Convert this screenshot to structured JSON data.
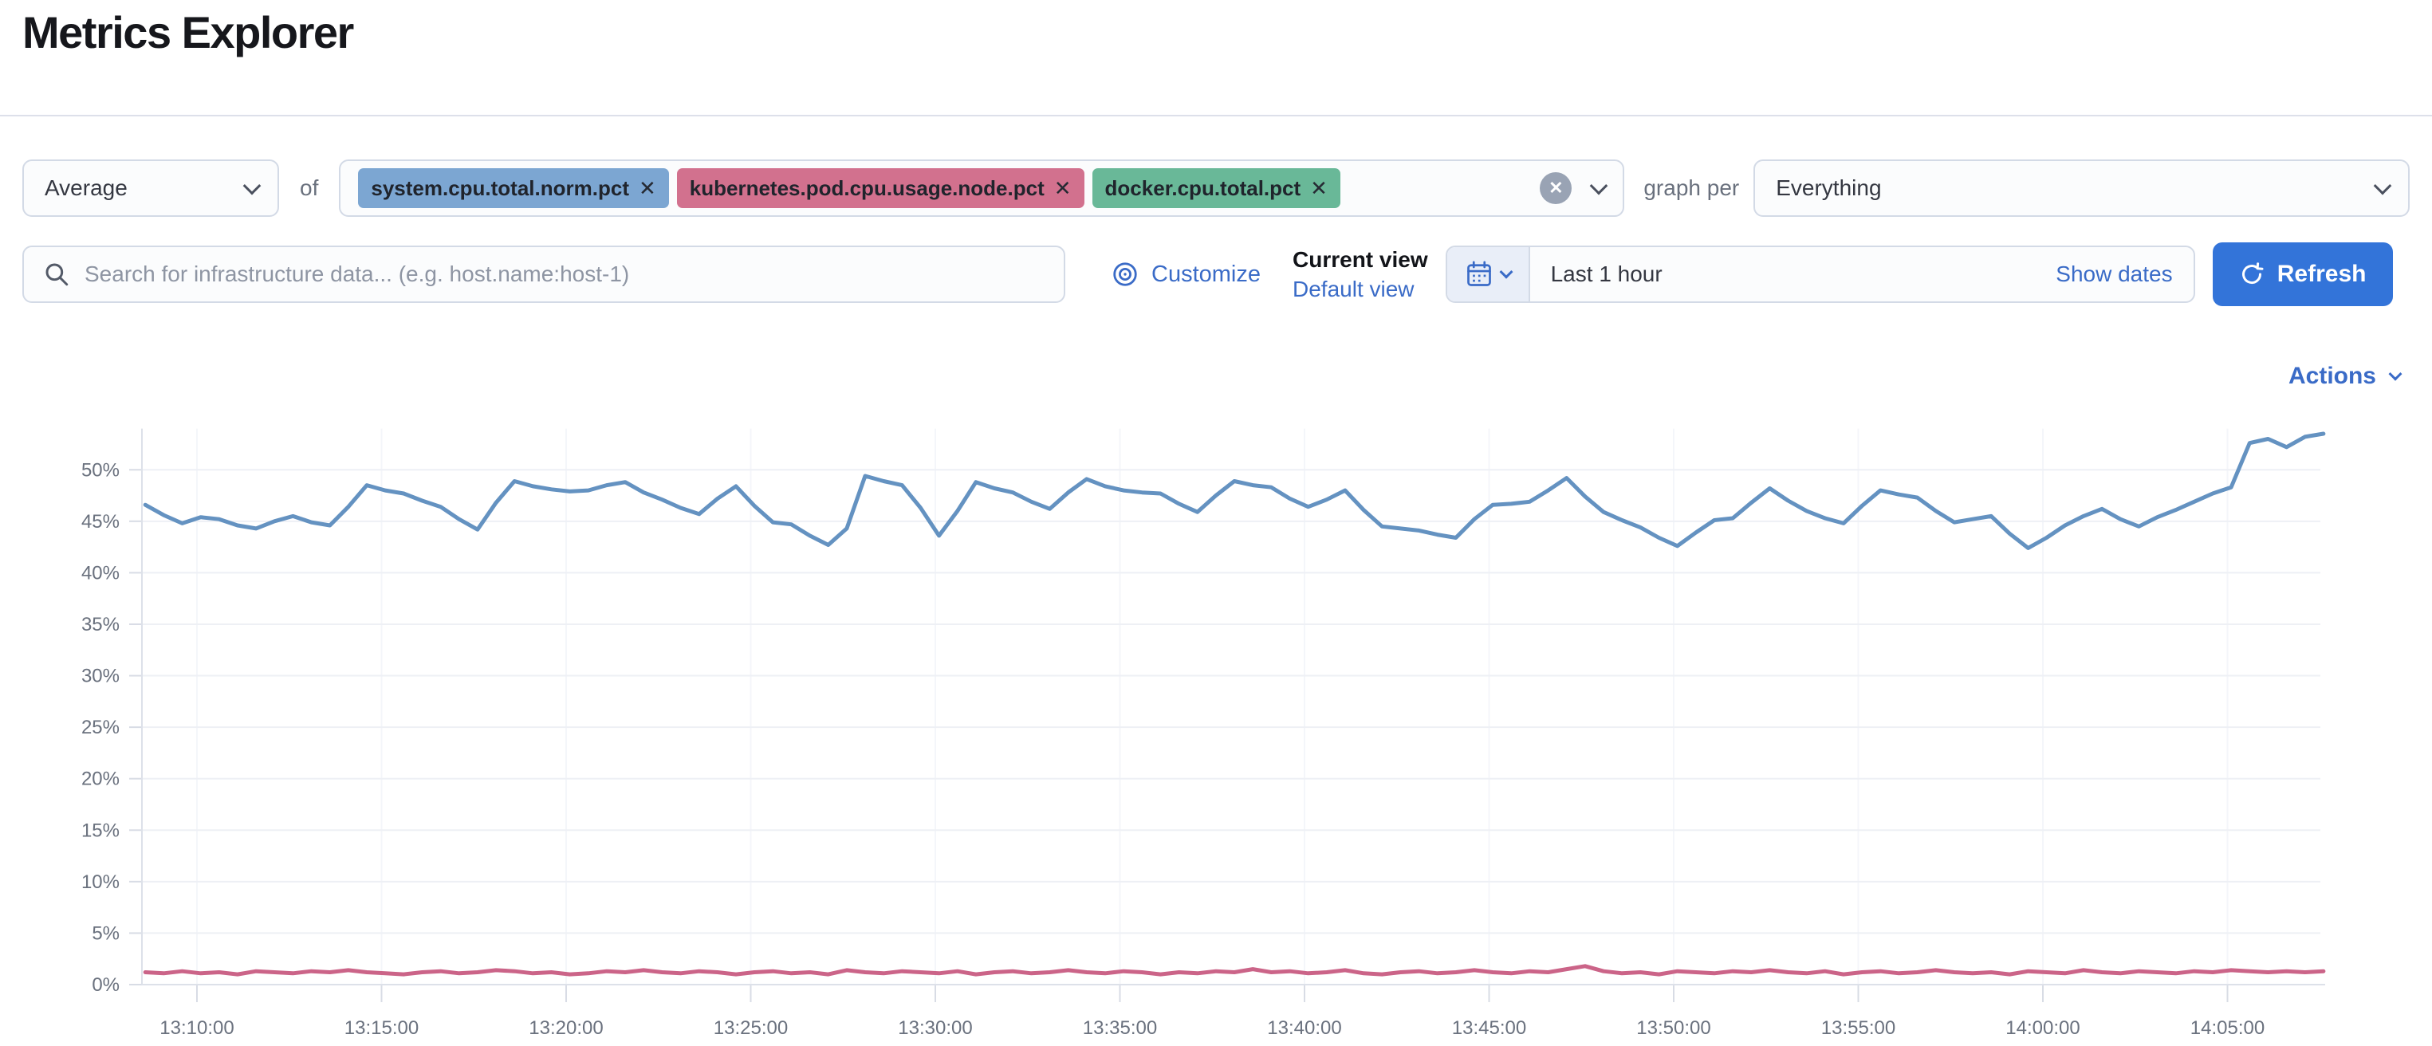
{
  "page": {
    "title": "Metrics Explorer"
  },
  "colors": {
    "accent": "#3a6bc7",
    "refresh_button": "#3374d9"
  },
  "toolbar": {
    "aggregation": {
      "value": "Average"
    },
    "of_label": "of",
    "metrics": [
      {
        "label": "system.cpu.total.norm.pct",
        "color": "#7ca6d2"
      },
      {
        "label": "kubernetes.pod.cpu.usage.node.pct",
        "color": "#d2718e"
      },
      {
        "label": "docker.cpu.total.pct",
        "color": "#69b898"
      }
    ],
    "graph_per_label": "graph per",
    "graph_per": {
      "value": "Everything"
    }
  },
  "search": {
    "placeholder": "Search for infrastructure data... (e.g. host.name:host-1)"
  },
  "view_controls": {
    "customize_label": "Customize",
    "current_view_label": "Current view",
    "view_name": "Default view"
  },
  "time_controls": {
    "range_label": "Last 1 hour",
    "show_dates_label": "Show dates",
    "refresh_label": "Refresh"
  },
  "actions": {
    "label": "Actions"
  },
  "chart_data": {
    "type": "line",
    "title": "",
    "xlabel": "",
    "ylabel": "",
    "y_unit": "%",
    "ylim": [
      0,
      55
    ],
    "grid": true,
    "legend_position": "none",
    "y_ticks": [
      0,
      5,
      10,
      15,
      20,
      25,
      30,
      35,
      40,
      45,
      50
    ],
    "x_ticks": [
      {
        "label": "13:10:00",
        "minute": 2
      },
      {
        "label": "13:15:00",
        "minute": 7
      },
      {
        "label": "13:20:00",
        "minute": 12
      },
      {
        "label": "13:25:00",
        "minute": 17
      },
      {
        "label": "13:30:00",
        "minute": 22
      },
      {
        "label": "13:35:00",
        "minute": 27
      },
      {
        "label": "13:40:00",
        "minute": 32
      },
      {
        "label": "13:45:00",
        "minute": 37
      },
      {
        "label": "13:50:00",
        "minute": 42
      },
      {
        "label": "13:55:00",
        "minute": 47
      },
      {
        "label": "14:00:00",
        "minute": 52
      },
      {
        "label": "14:05:00",
        "minute": 57
      }
    ],
    "x_start_minutes": 0.6,
    "x_step_minutes": 0.5,
    "series": [
      {
        "name": "system.cpu.total.norm.pct",
        "color": "#6492c1",
        "values": [
          46.6,
          45.6,
          44.8,
          45.4,
          45.2,
          44.6,
          44.3,
          45.0,
          45.5,
          44.9,
          44.6,
          46.4,
          48.5,
          48.0,
          47.7,
          47.0,
          46.4,
          45.2,
          44.2,
          46.8,
          48.9,
          48.4,
          48.1,
          47.9,
          48.0,
          48.5,
          48.8,
          47.8,
          47.1,
          46.3,
          45.7,
          47.2,
          48.4,
          46.5,
          44.9,
          44.7,
          43.6,
          42.7,
          44.3,
          49.4,
          48.9,
          48.5,
          46.3,
          43.6,
          46.0,
          48.8,
          48.2,
          47.8,
          46.9,
          46.2,
          47.8,
          49.1,
          48.4,
          48.0,
          47.8,
          47.7,
          46.7,
          45.9,
          47.5,
          48.9,
          48.5,
          48.3,
          47.2,
          46.4,
          47.1,
          48.0,
          46.1,
          44.5,
          44.3,
          44.1,
          43.7,
          43.4,
          45.2,
          46.6,
          46.7,
          46.9,
          48.0,
          49.2,
          47.4,
          45.9,
          45.1,
          44.4,
          43.4,
          42.6,
          43.9,
          45.1,
          45.3,
          46.8,
          48.2,
          47.0,
          46.0,
          45.3,
          44.8,
          46.5,
          48.0,
          47.6,
          47.3,
          46.0,
          44.9,
          45.2,
          45.5,
          43.8,
          42.4,
          43.4,
          44.6,
          45.5,
          46.2,
          45.2,
          44.5,
          45.4,
          46.1,
          46.9,
          47.7,
          48.3,
          52.6,
          53.0,
          52.2,
          53.2,
          53.5
        ]
      },
      {
        "name": "kubernetes.pod.cpu.usage.node.pct",
        "color": "#cb6488",
        "values": [
          1.2,
          1.1,
          1.3,
          1.1,
          1.2,
          1.0,
          1.3,
          1.2,
          1.1,
          1.3,
          1.2,
          1.4,
          1.2,
          1.1,
          1.0,
          1.2,
          1.3,
          1.1,
          1.2,
          1.4,
          1.3,
          1.1,
          1.2,
          1.0,
          1.1,
          1.3,
          1.2,
          1.4,
          1.2,
          1.1,
          1.3,
          1.2,
          1.0,
          1.2,
          1.3,
          1.1,
          1.2,
          1.0,
          1.4,
          1.2,
          1.1,
          1.3,
          1.2,
          1.1,
          1.3,
          1.0,
          1.2,
          1.3,
          1.1,
          1.2,
          1.4,
          1.2,
          1.1,
          1.3,
          1.2,
          1.0,
          1.2,
          1.1,
          1.3,
          1.2,
          1.5,
          1.2,
          1.3,
          1.1,
          1.2,
          1.4,
          1.1,
          1.0,
          1.2,
          1.3,
          1.1,
          1.2,
          1.4,
          1.2,
          1.1,
          1.3,
          1.2,
          1.5,
          1.8,
          1.3,
          1.1,
          1.2,
          1.0,
          1.3,
          1.2,
          1.1,
          1.3,
          1.2,
          1.4,
          1.2,
          1.1,
          1.3,
          1.0,
          1.2,
          1.3,
          1.1,
          1.2,
          1.4,
          1.2,
          1.1,
          1.2,
          1.0,
          1.3,
          1.2,
          1.1,
          1.4,
          1.2,
          1.1,
          1.3,
          1.2,
          1.1,
          1.3,
          1.2,
          1.4,
          1.3,
          1.2,
          1.3,
          1.2,
          1.3
        ]
      }
    ]
  }
}
